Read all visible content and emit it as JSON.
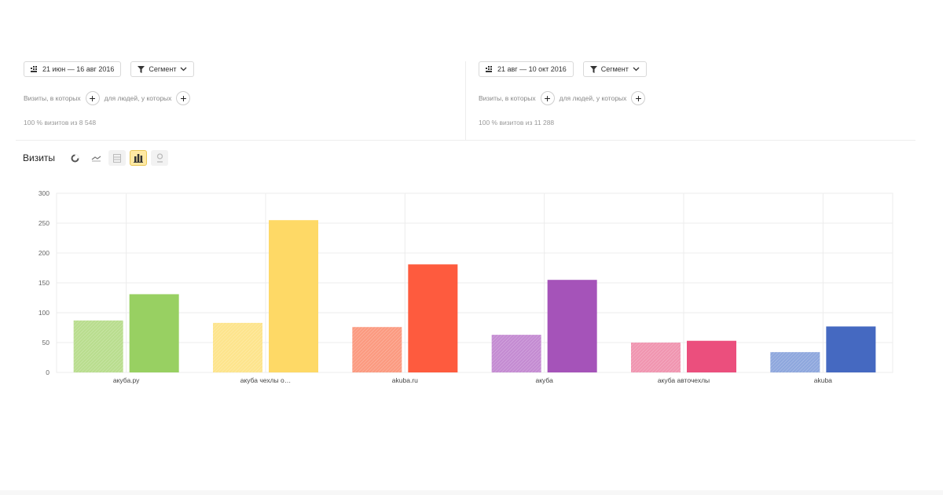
{
  "left_panel": {
    "date_range": "21 июн — 16 авг 2016",
    "segment_label": "Сегмент",
    "visits_filter": "Визиты, в которых",
    "people_filter": "для людей, у которых",
    "summary": "100 % визитов из 8 548"
  },
  "right_panel": {
    "date_range": "21 авг — 10 окт 2016",
    "segment_label": "Сегмент",
    "visits_filter": "Визиты, в которых",
    "people_filter": "для людей, у которых",
    "summary": "100 % визитов из 11 288"
  },
  "chart_header": {
    "title": "Визиты",
    "tools": [
      "pie-icon",
      "line-icon",
      "table-icon",
      "bar-chart-icon",
      "map-pin-icon"
    ],
    "active_tool": "bar-chart-icon"
  },
  "colors": {
    "active_tool_bg": "#ffe9a3",
    "grid": "#ececec"
  },
  "chart_data": {
    "type": "bar",
    "categories": [
      "акуба.ру",
      "акуба чехлы о…",
      "akuba.ru",
      "акуба",
      "акуба авточехлы",
      "akuba"
    ],
    "series": [
      {
        "values": [
          87,
          83,
          76,
          63,
          50,
          34
        ]
      },
      {
        "values": [
          131,
          255,
          181,
          155,
          53,
          77
        ]
      }
    ],
    "colors_light": [
      "#b9dd8e",
      "#fde48c",
      "#fb9a80",
      "#c48bd2",
      "#f095b0",
      "#8ea7dd"
    ],
    "colors_dark": [
      "#98d062",
      "#fed966",
      "#fe5b3e",
      "#a553b9",
      "#eb4f7d",
      "#4569c1"
    ],
    "xlabel": "",
    "ylabel": "",
    "ylim": [
      0,
      300
    ],
    "yticks": [
      "0",
      "50",
      "100",
      "150",
      "200",
      "250",
      "300"
    ],
    "grid": true,
    "legend": "none"
  }
}
